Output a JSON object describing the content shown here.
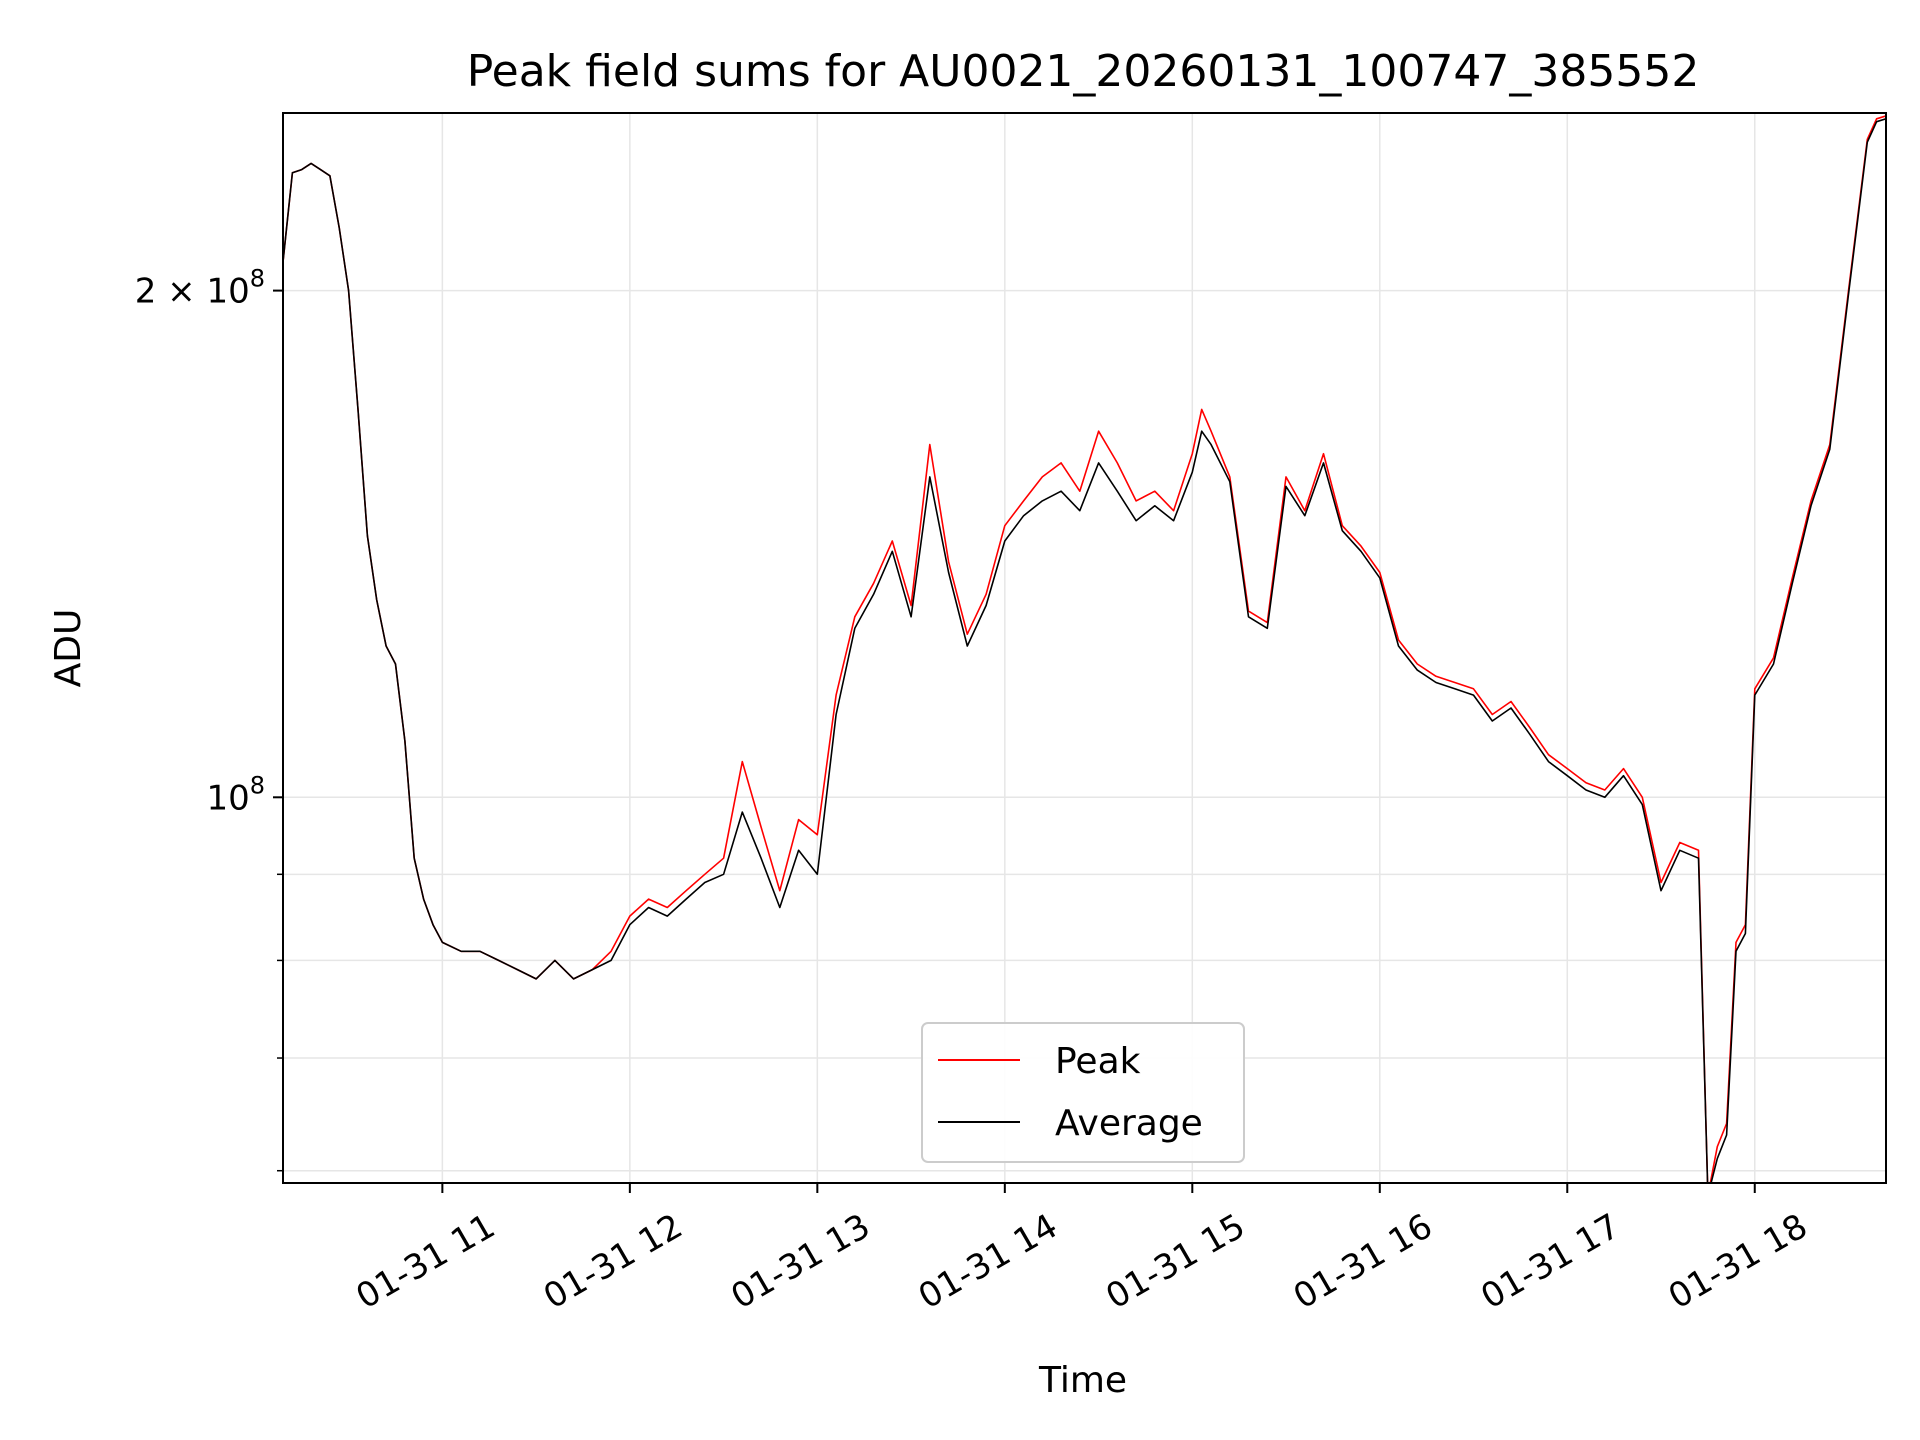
{
  "chart_data": {
    "type": "line",
    "title": "Peak field sums for AU0021_20260131_100747_385552",
    "xlabel": "Time",
    "ylabel": "ADU",
    "yscale": "log",
    "grid": true,
    "legend_position": "bottom-center",
    "x_unit": "hours of 01-31",
    "xlim": [
      10.15,
      18.7
    ],
    "ylim": [
      59000000,
      255000000
    ],
    "x_ticks": [
      {
        "value": 11,
        "label": "01-31 11"
      },
      {
        "value": 12,
        "label": "01-31 12"
      },
      {
        "value": 13,
        "label": "01-31 13"
      },
      {
        "value": 14,
        "label": "01-31 14"
      },
      {
        "value": 15,
        "label": "01-31 15"
      },
      {
        "value": 16,
        "label": "01-31 16"
      },
      {
        "value": 17,
        "label": "01-31 17"
      },
      {
        "value": 18,
        "label": "01-31 18"
      }
    ],
    "y_major_ticks": [
      {
        "value": 100000000,
        "base": "10",
        "exp": "8"
      },
      {
        "value": 200000000,
        "base": "2 × 10",
        "exp": "8"
      }
    ],
    "y_minor_ticks": [
      60000000,
      70000000,
      80000000,
      90000000
    ],
    "colors": {
      "peak": "#ff0000",
      "average": "#000000"
    },
    "x": [
      10.15,
      10.2,
      10.25,
      10.3,
      10.35,
      10.4,
      10.45,
      10.5,
      10.55,
      10.6,
      10.65,
      10.7,
      10.75,
      10.8,
      10.85,
      10.9,
      10.95,
      11.0,
      11.1,
      11.2,
      11.3,
      11.4,
      11.5,
      11.6,
      11.7,
      11.8,
      11.9,
      12.0,
      12.1,
      12.2,
      12.3,
      12.4,
      12.5,
      12.6,
      12.7,
      12.8,
      12.9,
      13.0,
      13.1,
      13.2,
      13.3,
      13.4,
      13.5,
      13.6,
      13.7,
      13.8,
      13.9,
      14.0,
      14.1,
      14.2,
      14.3,
      14.4,
      14.5,
      14.6,
      14.7,
      14.8,
      14.9,
      15.0,
      15.05,
      15.1,
      15.2,
      15.3,
      15.4,
      15.5,
      15.6,
      15.7,
      15.8,
      15.9,
      16.0,
      16.1,
      16.2,
      16.3,
      16.4,
      16.5,
      16.6,
      16.7,
      16.8,
      16.9,
      17.0,
      17.1,
      17.2,
      17.3,
      17.4,
      17.5,
      17.6,
      17.7,
      17.75,
      17.8,
      17.85,
      17.9,
      17.95,
      18.0,
      18.1,
      18.2,
      18.3,
      18.4,
      18.5,
      18.6,
      18.65,
      18.7
    ],
    "series": [
      {
        "name": "Peak",
        "color": "#ff0000",
        "values": [
          208000000,
          235000000,
          236000000,
          238000000,
          236000000,
          234000000,
          218000000,
          200000000,
          170000000,
          143000000,
          131000000,
          123000000,
          120000000,
          108000000,
          92000000,
          87000000,
          84000000,
          82000000,
          81000000,
          81000000,
          80000000,
          79000000,
          78000000,
          80000000,
          78000000,
          79000000,
          81000000,
          85000000,
          87000000,
          86000000,
          88000000,
          90000000,
          92000000,
          105000000,
          96000000,
          88000000,
          97000000,
          95000000,
          115000000,
          128000000,
          134000000,
          142000000,
          130000000,
          162000000,
          138000000,
          125000000,
          132000000,
          145000000,
          150000000,
          155000000,
          158000000,
          152000000,
          165000000,
          158000000,
          150000000,
          152000000,
          148000000,
          160000000,
          170000000,
          165000000,
          155000000,
          129000000,
          127000000,
          155000000,
          148000000,
          160000000,
          145000000,
          141000000,
          136000000,
          124000000,
          120000000,
          118000000,
          117000000,
          116000000,
          112000000,
          114000000,
          110000000,
          106000000,
          104000000,
          102000000,
          101000000,
          104000000,
          100000000,
          89000000,
          94000000,
          93000000,
          58000000,
          62000000,
          64000000,
          82000000,
          84000000,
          116000000,
          121000000,
          135000000,
          150000000,
          162000000,
          200000000,
          246000000,
          253000000,
          254000000
        ]
      },
      {
        "name": "Average",
        "color": "#000000",
        "values": [
          208000000,
          235000000,
          236000000,
          238000000,
          236000000,
          234000000,
          218000000,
          200000000,
          170000000,
          143000000,
          131000000,
          123000000,
          120000000,
          108000000,
          92000000,
          87000000,
          84000000,
          82000000,
          81000000,
          81000000,
          80000000,
          79000000,
          78000000,
          80000000,
          78000000,
          79000000,
          80000000,
          84000000,
          86000000,
          85000000,
          87000000,
          89000000,
          90000000,
          98000000,
          92000000,
          86000000,
          93000000,
          90000000,
          112000000,
          126000000,
          132000000,
          140000000,
          128000000,
          155000000,
          136000000,
          123000000,
          130000000,
          142000000,
          147000000,
          150000000,
          152000000,
          148000000,
          158000000,
          152000000,
          146000000,
          149000000,
          146000000,
          156000000,
          165000000,
          162000000,
          154000000,
          128000000,
          126000000,
          153000000,
          147000000,
          158000000,
          144000000,
          140000000,
          135000000,
          123000000,
          119000000,
          117000000,
          116000000,
          115000000,
          111000000,
          113000000,
          109000000,
          105000000,
          103000000,
          101000000,
          100000000,
          103000000,
          99000000,
          88000000,
          93000000,
          92000000,
          58000000,
          61000000,
          63000000,
          81000000,
          83000000,
          115000000,
          120000000,
          134000000,
          149000000,
          161000000,
          199000000,
          245000000,
          252000000,
          253000000
        ]
      }
    ]
  }
}
